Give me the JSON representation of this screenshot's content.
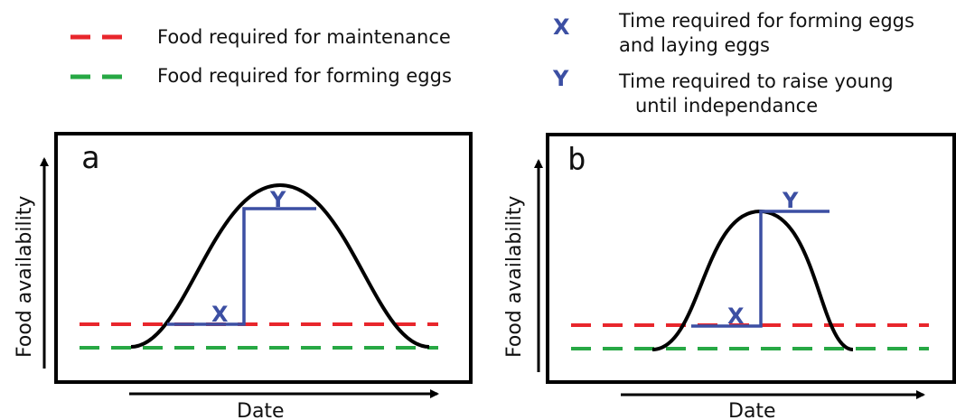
{
  "colors": {
    "maintenance": "#e8262c",
    "eggs": "#27a844",
    "xy": "#3c4fa3",
    "curve": "#000000"
  },
  "legend": {
    "maintenance_label": "Food required for maintenance",
    "eggs_label": "Food required for forming eggs",
    "x_symbol": "X",
    "x_desc_line1": "Time required for forming eggs",
    "x_desc_line2": "and laying eggs",
    "y_symbol": "Y",
    "y_desc_line1": "Time required to raise young",
    "y_desc_line2": "until independance"
  },
  "panels": [
    {
      "letter": "a",
      "y_axis_label": "Food availability",
      "x_axis_label": "Date",
      "x_marker": "X",
      "y_marker": "Y"
    },
    {
      "letter": "b",
      "y_axis_label": "Food availability",
      "x_axis_label": "Date",
      "x_marker": "X",
      "y_marker": "Y"
    }
  ]
}
